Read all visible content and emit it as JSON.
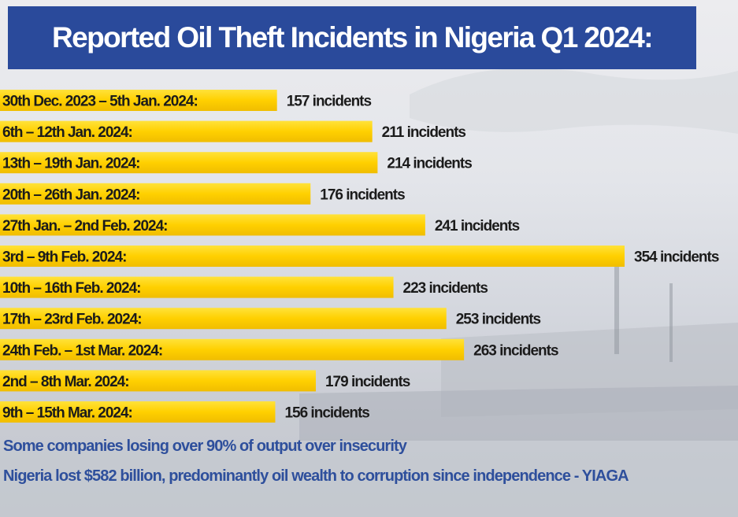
{
  "title": "Reported Oil Theft Incidents in Nigeria Q1 2024:",
  "colors": {
    "title_bg": "#2a4a9b",
    "bar_start": "#ffd400",
    "bar_end": "#f2c200",
    "footnote": "#2e4f9c"
  },
  "chart_data": {
    "type": "bar",
    "orientation": "horizontal",
    "categories": [
      "30th Dec. 2023 – 5th Jan. 2024:",
      "6th – 12th Jan. 2024:",
      "13th – 19th Jan. 2024:",
      "20th – 26th Jan. 2024:",
      "27th Jan. – 2nd Feb. 2024:",
      "3rd – 9th Feb. 2024:",
      "10th – 16th Feb. 2024:",
      "17th – 23rd Feb. 2024:",
      "24th Feb. – 1st Mar. 2024:",
      "2nd – 8th Mar. 2024:",
      "9th – 15th Mar. 2024:"
    ],
    "values": [
      157,
      211,
      214,
      176,
      241,
      354,
      223,
      253,
      263,
      179,
      156
    ],
    "value_labels": [
      "157 incidents",
      "211 incidents",
      "214 incidents",
      "176 incidents",
      "241 incidents",
      "354 incidents",
      "223 incidents",
      "253 incidents",
      "263 incidents",
      "179 incidents",
      "156 incidents"
    ]
  },
  "footnotes": [
    "Some companies losing over 90% of output over insecurity",
    "Nigeria lost $582 billion, predominantly oil wealth to corruption since independence - YIAGA"
  ]
}
